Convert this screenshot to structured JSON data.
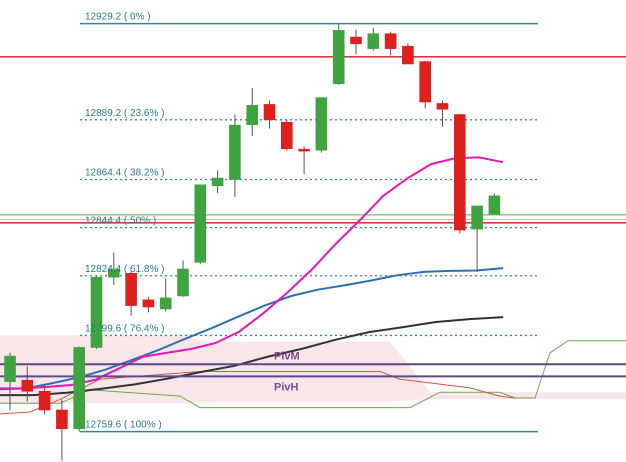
{
  "chart_data": {
    "type": "candlestick",
    "instrument_hint": "",
    "colors": {
      "bull": "#3fa33f",
      "bear": "#e01f1f",
      "fib_line": "#2a8c9a",
      "fib_text": "#2a7d8a",
      "resistance": "#d83a3a",
      "ma_fast": "#e619b4",
      "ma_mid": "#2f6fb0",
      "ma_slow": "#333333",
      "cloud_line": "#6aa84f",
      "cloud_fill": "#f9e6e8",
      "cloud_line_red": "#d9534f",
      "pivot_line": "#5b4a8a"
    },
    "y_range": [
      12747.0,
      12939.0
    ],
    "fibonacci": [
      {
        "price": 12929.2,
        "label": "12929.2 ( 0% )",
        "style": "solid"
      },
      {
        "price": 12889.2,
        "label": "12889.2 ( 23.6% )",
        "style": "dashed"
      },
      {
        "price": 12864.4,
        "label": "12864.4 ( 38.2% )",
        "style": "dashed"
      },
      {
        "price": 12844.4,
        "label": "12844.4 ( 50% )",
        "style": "dashed"
      },
      {
        "price": 12824.4,
        "label": "12824.4 ( 61.8% )",
        "style": "dashed"
      },
      {
        "price": 12799.6,
        "label": "12799.6 ( 76.4% )",
        "style": "dashed"
      },
      {
        "price": 12759.6,
        "label": "12759.6 ( 100% )",
        "style": "solid"
      }
    ],
    "horizontal_levels": [
      {
        "price": 12915.4,
        "color": "resistance",
        "width": 1.6
      },
      {
        "price": 12846.4,
        "color": "resistance",
        "width": 1.6
      },
      {
        "price": 12847.8,
        "color": "resistance_light",
        "width": 1
      },
      {
        "price": 12849.7,
        "color": "cloud_line",
        "width": 1
      }
    ],
    "pivots": [
      {
        "label": "PivM",
        "price": 12787.6
      },
      {
        "label": "PivH",
        "price": 12782.6
      }
    ],
    "candles": [
      {
        "o": 12780.4,
        "h": 12792.4,
        "l": 12768.4,
        "c": 12791.0
      },
      {
        "o": 12781.0,
        "h": 12786.8,
        "l": 12772.2,
        "c": 12776.4
      },
      {
        "o": 12776.4,
        "h": 12779.2,
        "l": 12766.8,
        "c": 12768.6
      },
      {
        "o": 12768.6,
        "h": 12773.0,
        "l": 12747.6,
        "c": 12760.8
      },
      {
        "o": 12760.8,
        "h": 12795.0,
        "l": 12759.6,
        "c": 12794.6
      },
      {
        "o": 12794.6,
        "h": 12824.4,
        "l": 12794.0,
        "c": 12823.8
      },
      {
        "o": 12823.8,
        "h": 12834.0,
        "l": 12820.6,
        "c": 12827.2
      },
      {
        "o": 12825.4,
        "h": 12826.4,
        "l": 12807.8,
        "c": 12812.0
      },
      {
        "o": 12814.4,
        "h": 12815.6,
        "l": 12809.2,
        "c": 12811.4
      },
      {
        "o": 12810.6,
        "h": 12823.4,
        "l": 12809.6,
        "c": 12815.2
      },
      {
        "o": 12816.0,
        "h": 12830.8,
        "l": 12815.6,
        "c": 12827.2
      },
      {
        "o": 12830.0,
        "h": 12862.2,
        "l": 12829.2,
        "c": 12862.2
      },
      {
        "o": 12861.8,
        "h": 12868.2,
        "l": 12858.8,
        "c": 12865.0
      },
      {
        "o": 12864.4,
        "h": 12891.4,
        "l": 12857.2,
        "c": 12887.0
      },
      {
        "o": 12887.2,
        "h": 12902.4,
        "l": 12882.4,
        "c": 12895.2
      },
      {
        "o": 12895.6,
        "h": 12897.2,
        "l": 12885.6,
        "c": 12889.2
      },
      {
        "o": 12888.2,
        "h": 12889.2,
        "l": 12876.4,
        "c": 12877.2
      },
      {
        "o": 12877.0,
        "h": 12878.2,
        "l": 12866.6,
        "c": 12876.2
      },
      {
        "o": 12876.6,
        "h": 12898.6,
        "l": 12875.6,
        "c": 12898.4
      },
      {
        "o": 12904.2,
        "h": 12929.2,
        "l": 12903.8,
        "c": 12926.4
      },
      {
        "o": 12923.6,
        "h": 12926.8,
        "l": 12916.4,
        "c": 12920.8
      },
      {
        "o": 12918.8,
        "h": 12927.4,
        "l": 12918.0,
        "c": 12925.0
      },
      {
        "o": 12925.0,
        "h": 12925.8,
        "l": 12916.0,
        "c": 12918.8
      },
      {
        "o": 12919.8,
        "h": 12921.0,
        "l": 12912.4,
        "c": 12912.4
      },
      {
        "o": 12913.4,
        "h": 12913.6,
        "l": 12894.0,
        "c": 12896.6
      },
      {
        "o": 12896.0,
        "h": 12897.2,
        "l": 12886.4,
        "c": 12893.6
      },
      {
        "o": 12891.4,
        "h": 12891.6,
        "l": 12842.0,
        "c": 12843.4
      },
      {
        "o": 12843.8,
        "h": 12853.6,
        "l": 12826.0,
        "c": 12853.4
      },
      {
        "o": 12850.0,
        "h": 12858.6,
        "l": 12850.0,
        "c": 12857.6
      }
    ],
    "ma_fast": [
      12777.6,
      12777.6,
      12778.2,
      12779.0,
      12781.2,
      12786.0,
      12790.8,
      12792.4,
      12794.0,
      12796.4,
      12801.2,
      12808.8,
      12817.4,
      12826.8,
      12837.4,
      12847.2,
      12857.6,
      12864.8,
      12870.8,
      12873.2,
      12873.6,
      12871.6
    ],
    "ma_mid": [
      12777.2,
      12777.6,
      12779.8,
      12782.2,
      12785.4,
      12789.4,
      12793.6,
      12798.2,
      12802.6,
      12807.4,
      12812.0,
      12816.0,
      12818.6,
      12820.4,
      12822.4,
      12824.6,
      12826.0,
      12826.4,
      12826.6,
      12827.6
    ],
    "ma_slow": [
      12774.8,
      12774.8,
      12775.8,
      12777.4,
      12779.2,
      12781.6,
      12784.4,
      12787.0,
      12790.8,
      12794.0,
      12797.8,
      12801.0,
      12803.0,
      12805.2,
      12806.4,
      12807.2
    ],
    "cloud_upper": [
      12799.6,
      12799.6,
      12797.0,
      12797.0,
      12776.0,
      12776.0
    ],
    "cloud_lower": [
      12771.4,
      12771.4,
      12772.0,
      12772.0,
      12773.2,
      12773.2
    ]
  }
}
